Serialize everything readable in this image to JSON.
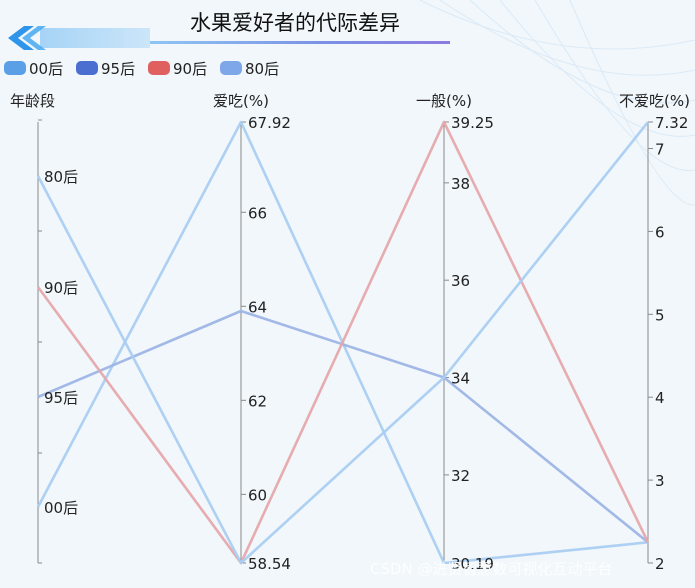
{
  "chart_data": {
    "type": "parallel",
    "title": "水果爱好者的代际差异",
    "legend": {
      "placement": "top-left",
      "items": [
        {
          "name": "00后",
          "color": "#5b9fe6"
        },
        {
          "name": "95后",
          "color": "#4a6fd0"
        },
        {
          "name": "90后",
          "color": "#e06060"
        },
        {
          "name": "80后",
          "color": "#7ea7ea"
        }
      ]
    },
    "axes": [
      {
        "name": "年龄段",
        "type": "category",
        "categories": [
          "00后",
          "95后",
          "90后",
          "80后"
        ]
      },
      {
        "name": "爱吃(%)",
        "type": "value",
        "min": 58.54,
        "max": 67.92,
        "ticks": [
          60,
          62,
          64,
          66
        ],
        "tick_labels": [
          "58.54",
          "60",
          "62",
          "64",
          "66",
          "67.92"
        ]
      },
      {
        "name": "一般(%)",
        "type": "value",
        "min": 30.19,
        "max": 39.25,
        "ticks": [
          32,
          34,
          36,
          38
        ],
        "tick_labels": [
          "30.19",
          "32",
          "34",
          "36",
          "38",
          "39.25"
        ]
      },
      {
        "name": "不爱吃(%)",
        "type": "value",
        "min": 2,
        "max": 7.32,
        "ticks": [
          3,
          4,
          5,
          6,
          7
        ],
        "tick_labels": [
          "2",
          "3",
          "4",
          "5",
          "6",
          "7",
          "7.32"
        ]
      }
    ],
    "series": [
      {
        "name": "00后",
        "color": "#a9cdf2",
        "values": [
          "00后",
          67.92,
          30.19,
          2.25
        ]
      },
      {
        "name": "95后",
        "color": "#9db4e6",
        "values": [
          "95后",
          63.9,
          34.0,
          2.25
        ]
      },
      {
        "name": "90后",
        "color": "#e5a8ab",
        "values": [
          "90后",
          58.54,
          39.25,
          2.25
        ]
      },
      {
        "name": "80后",
        "color": "#a9cdf2",
        "values": [
          "80后",
          58.54,
          34.0,
          7.32
        ]
      }
    ]
  },
  "watermark": "CSDN @进贤智慧数可视化互动平台"
}
